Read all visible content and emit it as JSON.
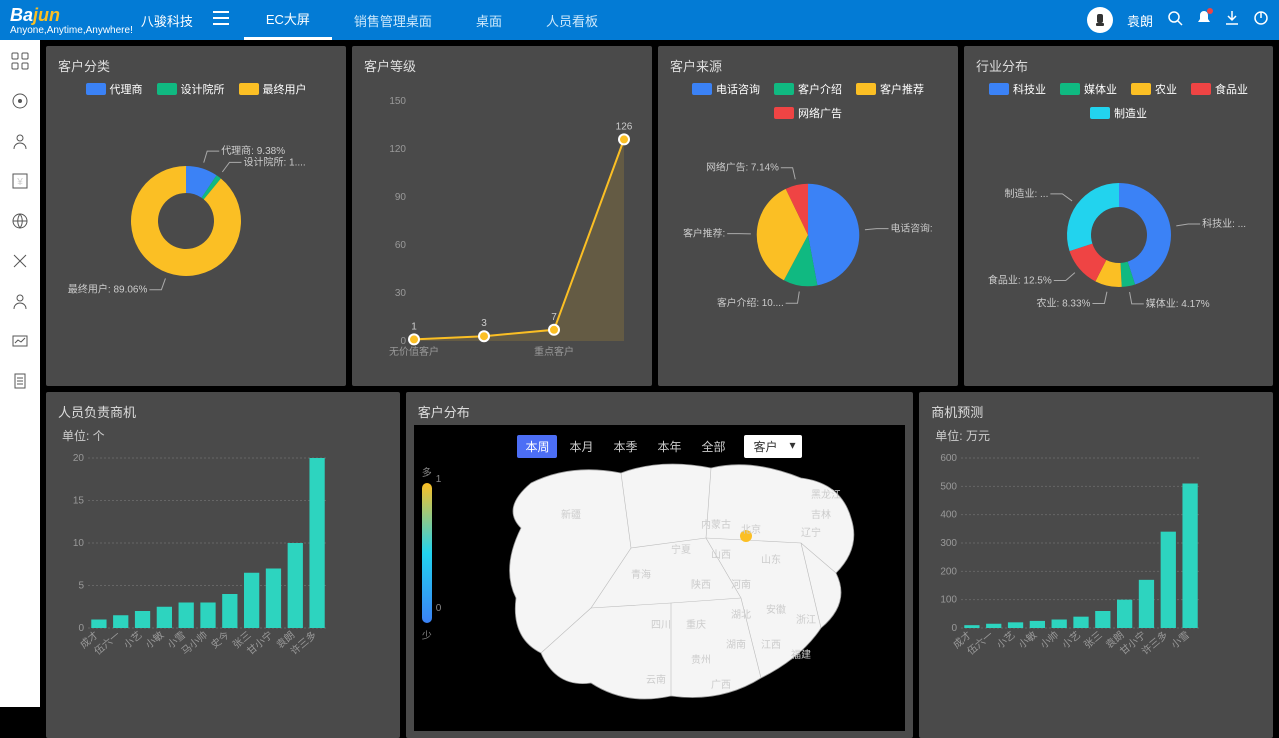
{
  "brand": {
    "main_a": "Ba",
    "main_b": "jun",
    "cn": "八骏科技",
    "tagline": "Anyone,Anytime,Anywhere!"
  },
  "nav": {
    "tabs": [
      "EC大屏",
      "销售管理桌面",
      "桌面",
      "人员看板"
    ],
    "active": 0
  },
  "user": {
    "name": "袁朗"
  },
  "panels": {
    "p1": {
      "title": "客户分类",
      "type": "donut",
      "series": [
        {
          "name": "代理商",
          "value": 9.38,
          "color": "#3b82f6",
          "label": "代理商: 9.38%"
        },
        {
          "name": "设计院所",
          "value": 1.56,
          "color": "#10b981",
          "label": "设计院所: 1...."
        },
        {
          "name": "最终用户",
          "value": 89.06,
          "color": "#fbbf24",
          "label": "最终用户: 89.06%"
        }
      ]
    },
    "p2": {
      "title": "客户等级",
      "type": "line",
      "categories": [
        "无价值客户",
        "",
        "重点客户",
        ""
      ],
      "values": [
        1,
        3,
        7,
        126
      ],
      "ylim": [
        0,
        150
      ],
      "ystep": 30,
      "line_color": "#fbbf24",
      "point_fill": "#fbbf24",
      "point_stroke": "#fff"
    },
    "p3": {
      "title": "客户来源",
      "type": "pie",
      "series": [
        {
          "name": "电话咨询",
          "value": 47,
          "color": "#3b82f6",
          "label": "电话咨询:"
        },
        {
          "name": "客户介绍",
          "value": 10.71,
          "color": "#10b981",
          "label": "客户介绍: 10...."
        },
        {
          "name": "客户推荐",
          "value": 35,
          "color": "#fbbf24",
          "label": "客户推荐:"
        },
        {
          "name": "网络广告",
          "value": 7.14,
          "color": "#ef4444",
          "label": "网络广告: 7.14%"
        }
      ]
    },
    "p4": {
      "title": "行业分布",
      "type": "donut",
      "series": [
        {
          "name": "科技业",
          "value": 45,
          "color": "#3b82f6",
          "label": "科技业: ..."
        },
        {
          "name": "媒体业",
          "value": 4.17,
          "color": "#10b981",
          "label": "媒体业: 4.17%"
        },
        {
          "name": "农业",
          "value": 8.33,
          "color": "#fbbf24",
          "label": "农业: 8.33%"
        },
        {
          "name": "食品业",
          "value": 12.5,
          "color": "#ef4444",
          "label": "食品业: 12.5%"
        },
        {
          "name": "制造业",
          "value": 30,
          "color": "#22d3ee",
          "label": "制造业: ..."
        }
      ]
    },
    "p5": {
      "title": "人员负责商机",
      "unit": "单位: 个",
      "type": "bar",
      "categories": [
        "成才",
        "伍六一",
        "小艺",
        "小敏",
        "小雪",
        "马小帅",
        "史今",
        "张三",
        "甘小宁",
        "袁朗",
        "许三多"
      ],
      "values": [
        1,
        1.5,
        2,
        2.5,
        3,
        3,
        4,
        6.5,
        7,
        10,
        20
      ],
      "ylim": [
        0,
        20
      ],
      "ystep": 5,
      "bar_color": "#2dd4bf"
    },
    "p6": {
      "title": "客户分布",
      "time_buttons": [
        "本周",
        "本月",
        "本季",
        "本年",
        "全部"
      ],
      "time_active": 0,
      "dropdown": "客户",
      "gradient": {
        "top_label": "多",
        "bottom_label": "少",
        "max": "1",
        "min": "0"
      },
      "provinces": [
        "新疆",
        "黑龙江",
        "吉林",
        "辽宁",
        "内蒙古",
        "北京",
        "宁夏",
        "山西",
        "山东",
        "青海",
        "陕西",
        "河南",
        "四川",
        "重庆",
        "湖北",
        "安徽",
        "浙江",
        "湖南",
        "贵州",
        "江西",
        "福建",
        "云南",
        "广西"
      ]
    },
    "p7": {
      "title": "商机预测",
      "unit": "单位: 万元",
      "type": "bar",
      "categories": [
        "成才",
        "伍六一",
        "小艺",
        "小敏",
        "小帅",
        "小艺",
        "张三",
        "袁朗",
        "甘小宁",
        "许三多",
        "小雪"
      ],
      "values": [
        10,
        15,
        20,
        25,
        30,
        40,
        60,
        100,
        170,
        340,
        510
      ],
      "ylim": [
        0,
        600
      ],
      "ystep": 100,
      "bar_color": "#2dd4bf"
    }
  },
  "colors": {
    "panel_bg": "#4a4a4a",
    "accent": "#037bd5"
  }
}
